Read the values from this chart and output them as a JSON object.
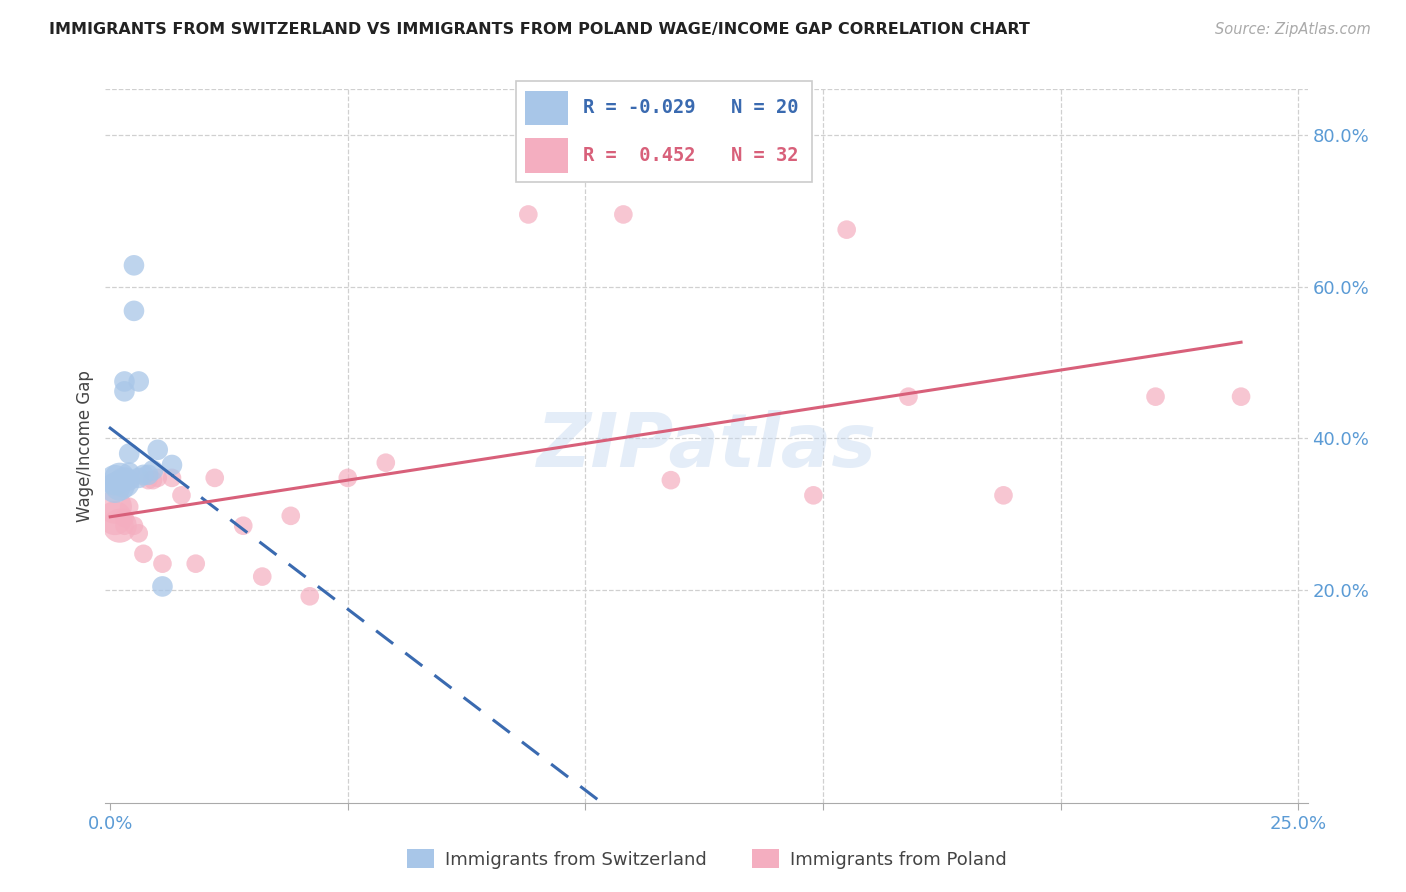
{
  "title": "IMMIGRANTS FROM SWITZERLAND VS IMMIGRANTS FROM POLAND WAGE/INCOME GAP CORRELATION CHART",
  "source": "Source: ZipAtlas.com",
  "ylabel": "Wage/Income Gap",
  "ytick_labels": [
    "20.0%",
    "40.0%",
    "60.0%",
    "80.0%"
  ],
  "ytick_values": [
    0.2,
    0.4,
    0.6,
    0.8
  ],
  "xlim": [
    -0.001,
    0.252
  ],
  "ylim": [
    -0.08,
    0.86
  ],
  "swiss_color": "#a8c6e8",
  "poland_color": "#f4aec0",
  "swiss_line_color": "#3a6ab0",
  "poland_line_color": "#d8607a",
  "grid_color": "#d0d0d0",
  "swiss_x": [
    0.001,
    0.001,
    0.002,
    0.002,
    0.003,
    0.003,
    0.003,
    0.004,
    0.004,
    0.004,
    0.005,
    0.005,
    0.006,
    0.006,
    0.007,
    0.008,
    0.009,
    0.01,
    0.011,
    0.013
  ],
  "swiss_y": [
    0.335,
    0.345,
    0.338,
    0.348,
    0.342,
    0.462,
    0.475,
    0.345,
    0.355,
    0.38,
    0.628,
    0.568,
    0.475,
    0.348,
    0.352,
    0.352,
    0.358,
    0.385,
    0.205,
    0.365
  ],
  "swiss_sizes_big": [
    1,
    2,
    3,
    4
  ],
  "poland_x": [
    0.001,
    0.001,
    0.002,
    0.003,
    0.003,
    0.004,
    0.005,
    0.006,
    0.007,
    0.008,
    0.009,
    0.01,
    0.011,
    0.013,
    0.015,
    0.018,
    0.022,
    0.028,
    0.032,
    0.038,
    0.042,
    0.05,
    0.058,
    0.088,
    0.108,
    0.118,
    0.148,
    0.155,
    0.168,
    0.188,
    0.22,
    0.238
  ],
  "poland_y": [
    0.295,
    0.31,
    0.285,
    0.295,
    0.285,
    0.31,
    0.285,
    0.275,
    0.248,
    0.345,
    0.345,
    0.348,
    0.235,
    0.348,
    0.325,
    0.235,
    0.348,
    0.285,
    0.218,
    0.298,
    0.192,
    0.348,
    0.368,
    0.695,
    0.695,
    0.345,
    0.325,
    0.675,
    0.455,
    0.325,
    0.455,
    0.455
  ],
  "legend_r_swiss": "R = -0.029",
  "legend_n_swiss": "N = 20",
  "legend_r_poland": "R =  0.452",
  "legend_n_poland": "N = 32",
  "bottom_legend1": "Immigrants from Switzerland",
  "bottom_legend2": "Immigrants from Poland",
  "watermark": "ZIPatlas",
  "background_color": "#ffffff"
}
